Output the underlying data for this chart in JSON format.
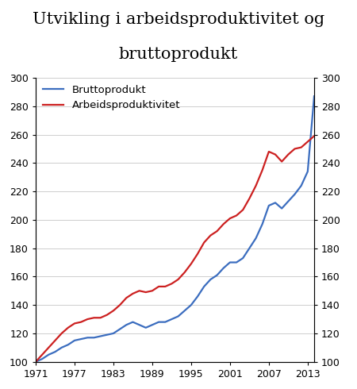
{
  "title_line1": "Utvikling i arbeidsproduktivitet og",
  "title_line2": "bruttoprodukt",
  "title_fontsize": 15,
  "ylim": [
    100,
    300
  ],
  "yticks": [
    100,
    120,
    140,
    160,
    180,
    200,
    220,
    240,
    260,
    280,
    300
  ],
  "xticks": [
    1971,
    1977,
    1983,
    1989,
    1995,
    2001,
    2007,
    2013
  ],
  "legend_entries": [
    "Bruttoprodukt",
    "Arbeidsproduktivitet"
  ],
  "line_colors": [
    "#3b6dbf",
    "#cc2020"
  ],
  "background_color": "#ffffff",
  "bruttoprodukt": {
    "years": [
      1971,
      1972,
      1973,
      1974,
      1975,
      1976,
      1977,
      1978,
      1979,
      1980,
      1981,
      1982,
      1983,
      1984,
      1985,
      1986,
      1987,
      1988,
      1989,
      1990,
      1991,
      1992,
      1993,
      1994,
      1995,
      1996,
      1997,
      1998,
      1999,
      2000,
      2001,
      2002,
      2003,
      2004,
      2005,
      2006,
      2007,
      2008,
      2009,
      2010,
      2011,
      2012,
      2013,
      2014
    ],
    "values": [
      100,
      102,
      105,
      107,
      110,
      112,
      115,
      116,
      117,
      117,
      118,
      119,
      120,
      123,
      126,
      128,
      126,
      124,
      126,
      128,
      128,
      130,
      132,
      136,
      140,
      146,
      153,
      158,
      161,
      166,
      170,
      170,
      173,
      180,
      187,
      197,
      210,
      212,
      208,
      213,
      218,
      224,
      234,
      287
    ]
  },
  "arbeidsproduktivitet": {
    "years": [
      1971,
      1972,
      1973,
      1974,
      1975,
      1976,
      1977,
      1978,
      1979,
      1980,
      1981,
      1982,
      1983,
      1984,
      1985,
      1986,
      1987,
      1988,
      1989,
      1990,
      1991,
      1992,
      1993,
      1994,
      1995,
      1996,
      1997,
      1998,
      1999,
      2000,
      2001,
      2002,
      2003,
      2004,
      2005,
      2006,
      2007,
      2008,
      2009,
      2010,
      2011,
      2012,
      2013,
      2014
    ],
    "values": [
      100,
      105,
      110,
      115,
      120,
      124,
      127,
      128,
      130,
      131,
      131,
      133,
      136,
      140,
      145,
      148,
      150,
      149,
      150,
      153,
      153,
      155,
      158,
      163,
      169,
      176,
      184,
      189,
      192,
      197,
      201,
      203,
      207,
      215,
      224,
      235,
      248,
      246,
      241,
      246,
      250,
      251,
      255,
      259
    ]
  }
}
